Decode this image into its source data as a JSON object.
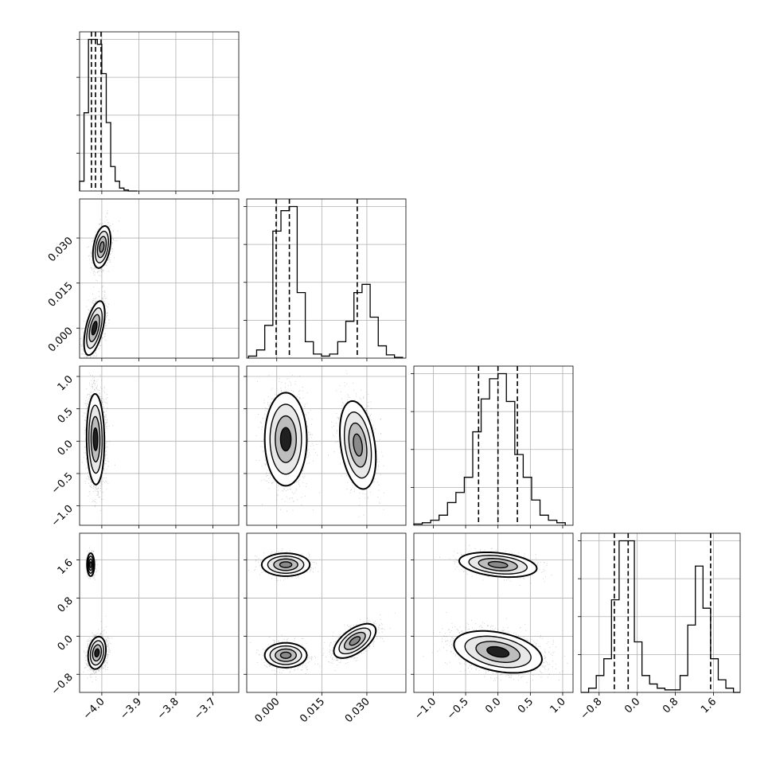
{
  "chart_data": {
    "type": "corner",
    "parameters": 4,
    "grid": true,
    "colors": {
      "line": "#000000",
      "grid": "#b0b0b0",
      "points": "#000000",
      "density_dark": "#000000",
      "density_light": "#ffffff"
    },
    "axes": [
      {
        "index": 0,
        "range": [
          -4.06,
          -3.63
        ],
        "ticks": [
          -4.0,
          -3.9,
          -3.8,
          -3.7
        ],
        "tick_labels": [
          "−4.0",
          "−3.9",
          "−3.8",
          "−3.7"
        ]
      },
      {
        "index": 1,
        "range": [
          -0.01,
          0.043
        ],
        "ticks": [
          0.0,
          0.015,
          0.03
        ],
        "tick_labels": [
          "0.000",
          "0.015",
          "0.030"
        ]
      },
      {
        "index": 2,
        "range": [
          -1.3,
          1.16
        ],
        "ticks": [
          -1.0,
          -0.5,
          0.0,
          0.5,
          1.0
        ],
        "tick_labels": [
          "−1.0",
          "−0.5",
          "0.0",
          "0.5",
          "1.0"
        ]
      },
      {
        "index": 3,
        "range": [
          -1.18,
          2.16
        ],
        "ticks": [
          -0.8,
          0.0,
          0.8,
          1.6
        ],
        "tick_labels": [
          "−0.8",
          "0.0",
          "0.8",
          "1.6"
        ]
      }
    ],
    "histograms": [
      {
        "param": 0,
        "bin_edges": [
          -4.06,
          -4.048,
          -4.036,
          -4.024,
          -4.012,
          -4.0,
          -3.988,
          -3.976,
          -3.964,
          -3.952,
          -3.94,
          -3.928,
          -3.916,
          -3.904
        ],
        "counts": [
          2,
          16,
          31,
          31,
          30,
          24,
          14,
          5,
          2,
          0.6,
          0.2,
          0,
          0
        ],
        "quantiles": [
          -4.028,
          -4.017,
          -4.002
        ]
      },
      {
        "param": 1,
        "bin_edges": [
          -0.0094,
          -0.0067,
          -0.004,
          -0.0013,
          0.0014,
          0.0041,
          0.0068,
          0.0095,
          0.0122,
          0.0149,
          0.0176,
          0.0203,
          0.023,
          0.0257,
          0.0284,
          0.0311,
          0.0338,
          0.0365,
          0.0392,
          0.0419
        ],
        "counts": [
          0.5,
          2,
          8,
          31,
          36,
          37,
          16,
          4,
          1,
          0.5,
          1,
          4,
          9,
          16,
          18,
          10,
          3,
          0.8,
          0.2
        ],
        "quantiles": [
          -0.0002,
          0.0042,
          0.0268
        ]
      },
      {
        "param": 2,
        "bin_edges": [
          -1.3,
          -1.17,
          -1.04,
          -0.91,
          -0.78,
          -0.65,
          -0.52,
          -0.39,
          -0.26,
          -0.13,
          0.0,
          0.13,
          0.26,
          0.39,
          0.52,
          0.65,
          0.78,
          0.91,
          1.04
        ],
        "counts": [
          0.5,
          1,
          2,
          4,
          9,
          13,
          19,
          37,
          50,
          58,
          60,
          49,
          28,
          19,
          10,
          4,
          2,
          1
        ],
        "quantiles": [
          -0.3,
          0.0,
          0.3
        ]
      },
      {
        "param": 3,
        "bin_edges": [
          -1.18,
          -1.02,
          -0.86,
          -0.7,
          -0.54,
          -0.38,
          -0.22,
          -0.06,
          0.1,
          0.26,
          0.42,
          0.58,
          0.74,
          0.9,
          1.06,
          1.22,
          1.38,
          1.54,
          1.7,
          1.86,
          2.02,
          2.16
        ],
        "counts": [
          0,
          0.5,
          2,
          4,
          11,
          18,
          18,
          6,
          2,
          1,
          0.5,
          0.3,
          0.3,
          2,
          8,
          15,
          10,
          4,
          1.5,
          0.5,
          0
        ],
        "quantiles": [
          -0.48,
          -0.19,
          1.54
        ]
      }
    ],
    "scatter_panels": [
      {
        "x_param": 0,
        "y_param": 1,
        "modes": [
          {
            "weight": 0.55,
            "mean": [
              -4.02,
              0.0
            ],
            "sd": [
              0.014,
              0.0045
            ],
            "rho": 0.55
          },
          {
            "weight": 0.45,
            "mean": [
              -4.0,
              0.027
            ],
            "sd": [
              0.012,
              0.0035
            ],
            "rho": 0.35
          }
        ]
      },
      {
        "x_param": 0,
        "y_param": 2,
        "modes": [
          {
            "weight": 1.0,
            "mean": [
              -4.017,
              0.03
            ],
            "sd": [
              0.012,
              0.35
            ],
            "rho": -0.05
          }
        ]
      },
      {
        "x_param": 1,
        "y_param": 2,
        "modes": [
          {
            "weight": 0.58,
            "mean": [
              0.003,
              0.03
            ],
            "sd": [
              0.0035,
              0.36
            ],
            "rho": 0.0
          },
          {
            "weight": 0.42,
            "mean": [
              0.027,
              -0.06
            ],
            "sd": [
              0.003,
              0.34
            ],
            "rho": -0.3
          }
        ]
      },
      {
        "x_param": 0,
        "y_param": 3,
        "modes": [
          {
            "weight": 0.2,
            "mean": [
              -4.03,
              1.5
            ],
            "sd": [
              0.005,
              0.12
            ],
            "rho": 0.0
          },
          {
            "weight": 0.8,
            "mean": [
              -4.013,
              -0.35
            ],
            "sd": [
              0.012,
              0.17
            ],
            "rho": 0.2
          }
        ]
      },
      {
        "x_param": 1,
        "y_param": 3,
        "modes": [
          {
            "weight": 0.2,
            "mean": [
              0.003,
              1.5
            ],
            "sd": [
              0.004,
              0.12
            ],
            "rho": 0.0
          },
          {
            "weight": 0.4,
            "mean": [
              0.003,
              -0.4
            ],
            "sd": [
              0.0035,
              0.13
            ],
            "rho": 0.0
          },
          {
            "weight": 0.4,
            "mean": [
              0.026,
              -0.1
            ],
            "sd": [
              0.0035,
              0.18
            ],
            "rho": 0.6
          }
        ]
      },
      {
        "x_param": 2,
        "y_param": 3,
        "modes": [
          {
            "weight": 0.3,
            "mean": [
              0.0,
              1.5
            ],
            "sd": [
              0.3,
              0.13
            ],
            "rho": -0.3
          },
          {
            "weight": 0.7,
            "mean": [
              0.0,
              -0.33
            ],
            "sd": [
              0.34,
              0.22
            ],
            "rho": -0.35
          }
        ]
      }
    ]
  }
}
